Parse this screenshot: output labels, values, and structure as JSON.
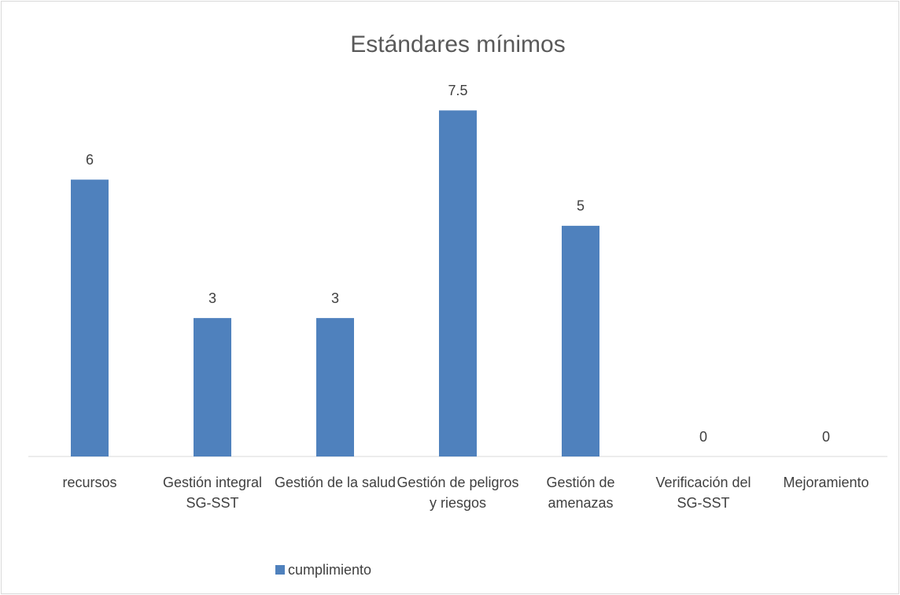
{
  "chart_data": {
    "type": "bar",
    "title": "Estándares mínimos",
    "categories": [
      "recursos",
      "Gestión integral SG-SST",
      "Gestión de la salud",
      "Gestión de peligros y riesgos",
      "Gestión de amenazas",
      "Verificación del SG-SST",
      "Mejoramiento"
    ],
    "series": [
      {
        "name": "cumplimiento",
        "color": "#4f81bd",
        "values": [
          6,
          3,
          3,
          7.5,
          5,
          0,
          0
        ]
      }
    ],
    "ylim": [
      0,
      8
    ],
    "legend": "bottom"
  }
}
